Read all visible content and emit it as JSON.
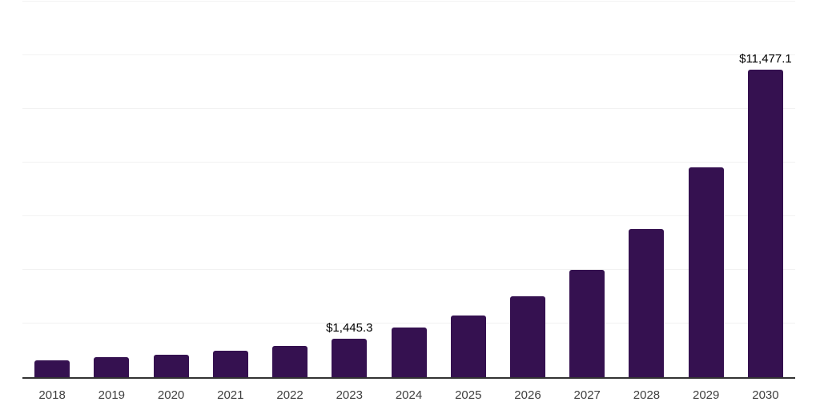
{
  "chart_data": {
    "type": "bar",
    "title": "",
    "xlabel": "",
    "ylabel": "",
    "categories": [
      "2018",
      "2019",
      "2020",
      "2021",
      "2022",
      "2023",
      "2024",
      "2025",
      "2026",
      "2027",
      "2028",
      "2029",
      "2030"
    ],
    "values": [
      630,
      760,
      840,
      990,
      1160,
      1445.3,
      1850,
      2300,
      3020,
      4000,
      5520,
      7820,
      11477.1
    ],
    "data_labels": [
      null,
      null,
      null,
      null,
      null,
      "$1,445.3",
      null,
      null,
      null,
      null,
      null,
      null,
      "$11,477.1"
    ],
    "ylim": [
      0,
      14000
    ],
    "gridline_step": 2000,
    "grid": true,
    "legend": false,
    "y_axis_labels_visible": false,
    "colors": {
      "bar": "#351150",
      "axis_line": "#333333",
      "gridline": "#f2f2f2",
      "data_label": "#000000",
      "tick_label": "#404040",
      "background": "#ffffff"
    }
  }
}
